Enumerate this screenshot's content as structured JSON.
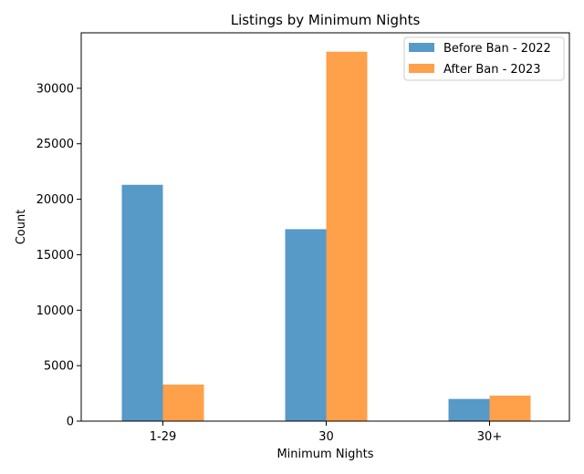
{
  "chart_data": {
    "type": "bar",
    "title": "Listings by Minimum Nights",
    "xlabel": "Minimum Nights",
    "ylabel": "Count",
    "categories": [
      "1-29",
      "30",
      "30+"
    ],
    "series": [
      {
        "name": "Before Ban - 2022",
        "color": "#5799c7",
        "values": [
          21300,
          17300,
          2000
        ]
      },
      {
        "name": "After Ban - 2023",
        "color": "#ffa04b",
        "values": [
          3300,
          33300,
          2300
        ]
      }
    ],
    "ylim": [
      0,
      35000
    ],
    "yticks": [
      0,
      5000,
      10000,
      15000,
      20000,
      25000,
      30000
    ],
    "grid": false,
    "legend_position": "top-right"
  }
}
